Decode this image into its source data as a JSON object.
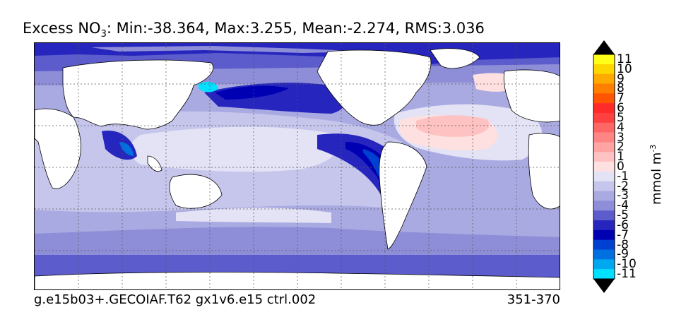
{
  "title": {
    "prefix": "Excess NO",
    "subscript": "3",
    "suffix": ": Min:-38.364, Max:3.255, Mean:-2.274, RMS:3.036"
  },
  "footer": {
    "run_name": "g.e15b03+.GECOIAF.T62 gx1v6.e15 ctrl.002",
    "years": "351-370"
  },
  "colorbar": {
    "units_base": "mmol m",
    "units_exp": "-3",
    "levels": [
      {
        "label": "11",
        "color": "#ffff1a"
      },
      {
        "label": "10",
        "color": "#ffd700"
      },
      {
        "label": "9",
        "color": "#ffaa00"
      },
      {
        "label": "8",
        "color": "#ff7f00"
      },
      {
        "label": "7",
        "color": "#ff5500"
      },
      {
        "label": "6",
        "color": "#ff2a2a"
      },
      {
        "label": "5",
        "color": "#ff4040"
      },
      {
        "label": "4",
        "color": "#ff6666"
      },
      {
        "label": "3",
        "color": "#ff8585"
      },
      {
        "label": "2",
        "color": "#ffa3a3"
      },
      {
        "label": "1",
        "color": "#ffc2c2"
      },
      {
        "label": "0",
        "color": "#ffe0e0"
      },
      {
        "label": "-1",
        "color": "#e3e3f5"
      },
      {
        "label": "-2",
        "color": "#c6c6ec"
      },
      {
        "label": "-3",
        "color": "#aaaae2"
      },
      {
        "label": "-4",
        "color": "#8e8ed8"
      },
      {
        "label": "-5",
        "color": "#5c5ccc"
      },
      {
        "label": "-6",
        "color": "#2626bf"
      },
      {
        "label": "-7",
        "color": "#0000b3"
      },
      {
        "label": "-8",
        "color": "#0040d0"
      },
      {
        "label": "-9",
        "color": "#0070e0"
      },
      {
        "label": "-10",
        "color": "#00a8f0"
      },
      {
        "label": "-11",
        "color": "#00e0ff"
      }
    ],
    "over_color": "#000000",
    "under_color": "#000000"
  }
}
